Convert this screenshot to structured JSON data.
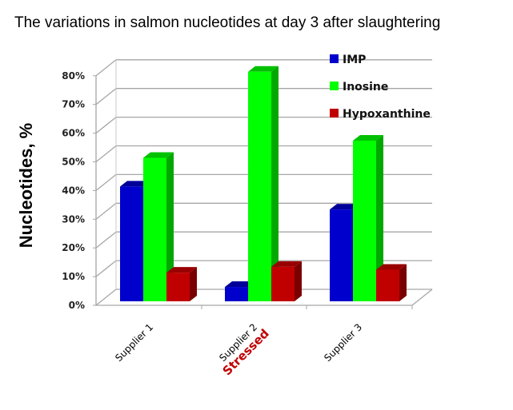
{
  "title": "The variations in salmon nucleotides at day 3 after slaughtering",
  "y_axis": {
    "title": "Nucleotides, %",
    "ticks": [
      "0%",
      "10%",
      "20%",
      "30%",
      "40%",
      "50%",
      "60%",
      "70%",
      "80%"
    ]
  },
  "x_axis": {
    "labels": [
      "Supplier 1",
      "Supplier 2",
      "Supplier 3"
    ],
    "annotation": {
      "text": "Stressed",
      "category": "Supplier 2",
      "color": "#c00000"
    }
  },
  "legend": [
    {
      "label": "IMP",
      "color": "#0000cc"
    },
    {
      "label": "Inosine",
      "color": "#00ff00"
    },
    {
      "label": "Hypoxanthine",
      "color": "#c00000"
    }
  ],
  "chart_data": {
    "type": "bar",
    "title": "The variations in salmon nucleotides at day 3 after slaughtering",
    "xlabel": "",
    "ylabel": "Nucleotides, %",
    "categories": [
      "Supplier 1",
      "Supplier 2",
      "Supplier 3"
    ],
    "category_annotations": {
      "Supplier 2": "Stressed"
    },
    "series": [
      {
        "name": "IMP",
        "color": "#0000cc",
        "values": [
          40,
          5,
          32
        ]
      },
      {
        "name": "Inosine",
        "color": "#00ff00",
        "values": [
          50,
          80,
          56
        ]
      },
      {
        "name": "Hypoxanthine",
        "color": "#c00000",
        "values": [
          10,
          12,
          11
        ]
      }
    ],
    "ylim": [
      0,
      80
    ],
    "y_unit": "%",
    "grid": true,
    "style": "3d clustered column",
    "legend_position": "top-right"
  }
}
